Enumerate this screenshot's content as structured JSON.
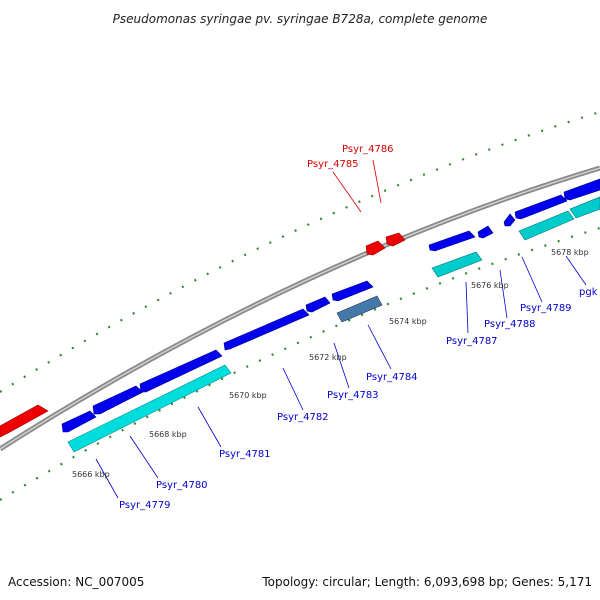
{
  "title": "Pseudomonas syringae pv. syringae B728a, complete genome",
  "footer": {
    "accession": "Accession: NC_007005",
    "stats": "Topology: circular; Length: 6,093,698 bp; Genes: 5,171"
  },
  "colors": {
    "background": "#ffffff",
    "backbone": "#8a8a8a",
    "gene_forward": "#0000ee",
    "gene_cds": "#00cccc",
    "gene_rna": "#ee0000",
    "gene_selected": "#4477aa",
    "tick": "#2e8b2e",
    "label_blue": "#0000cc",
    "label_red": "#dd0000"
  },
  "scale_labels": [
    "5666 kbp",
    "5668 kbp",
    "5670 kbp",
    "5672 kbp",
    "5674 kbp",
    "5676 kbp",
    "5678 kbp"
  ],
  "gene_labels": [
    {
      "name": "Psyr_4779",
      "color": "blue"
    },
    {
      "name": "Psyr_4780",
      "color": "blue"
    },
    {
      "name": "Psyr_4781",
      "color": "blue"
    },
    {
      "name": "Psyr_4782",
      "color": "blue"
    },
    {
      "name": "Psyr_4783",
      "color": "blue"
    },
    {
      "name": "Psyr_4784",
      "color": "blue"
    },
    {
      "name": "Psyr_4785",
      "color": "red"
    },
    {
      "name": "Psyr_4786",
      "color": "red"
    },
    {
      "name": "Psyr_4787",
      "color": "blue"
    },
    {
      "name": "Psyr_4788",
      "color": "blue"
    },
    {
      "name": "Psyr_4789",
      "color": "blue"
    },
    {
      "name": "pgk",
      "color": "blue"
    }
  ]
}
